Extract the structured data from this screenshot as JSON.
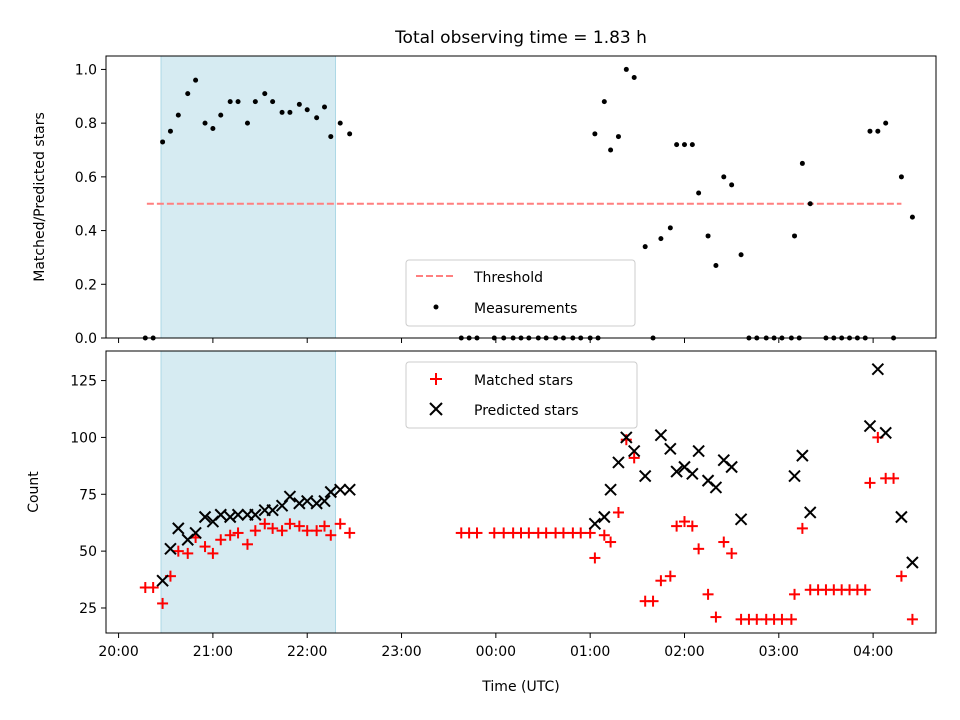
{
  "chart_data": [
    {
      "type": "scatter",
      "title": "Total observing time = 1.83 h",
      "ylabel": "Matched/Predicted stars",
      "xlabel": "",
      "ylim": [
        0,
        1.05
      ],
      "xlim": [
        "19:52",
        "04:40"
      ],
      "yticks": [
        "0.0",
        "0.2",
        "0.4",
        "0.6",
        "0.8",
        "1.0"
      ],
      "shaded_span": [
        "20:27",
        "22:18"
      ],
      "threshold": {
        "name": "Threshold",
        "value": 0.5,
        "x": [
          "20:18",
          "04:18"
        ],
        "color": "#ff7f7f"
      },
      "legend": {
        "placement": "lower-center",
        "entries": [
          "Threshold",
          "Measurements"
        ]
      },
      "series": [
        {
          "name": "Measurements",
          "color": "#000000",
          "points": [
            [
              "20:17",
              0.0
            ],
            [
              "20:22",
              0.0
            ],
            [
              "20:28",
              0.73
            ],
            [
              "20:33",
              0.77
            ],
            [
              "20:38",
              0.83
            ],
            [
              "20:44",
              0.91
            ],
            [
              "20:49",
              0.96
            ],
            [
              "20:55",
              0.8
            ],
            [
              "21:00",
              0.78
            ],
            [
              "21:05",
              0.83
            ],
            [
              "21:11",
              0.88
            ],
            [
              "21:16",
              0.88
            ],
            [
              "21:22",
              0.8
            ],
            [
              "21:27",
              0.88
            ],
            [
              "21:33",
              0.91
            ],
            [
              "21:38",
              0.88
            ],
            [
              "21:44",
              0.84
            ],
            [
              "21:49",
              0.84
            ],
            [
              "21:55",
              0.87
            ],
            [
              "22:00",
              0.85
            ],
            [
              "22:06",
              0.82
            ],
            [
              "22:11",
              0.86
            ],
            [
              "22:15",
              0.75
            ],
            [
              "22:21",
              0.8
            ],
            [
              "22:27",
              0.76
            ],
            [
              "23:38",
              0.0
            ],
            [
              "23:43",
              0.0
            ],
            [
              "23:48",
              0.0
            ],
            [
              "23:59",
              0.0
            ],
            [
              "00:05",
              0.0
            ],
            [
              "00:11",
              0.0
            ],
            [
              "00:16",
              0.0
            ],
            [
              "00:21",
              0.0
            ],
            [
              "00:27",
              0.0
            ],
            [
              "00:32",
              0.0
            ],
            [
              "00:38",
              0.0
            ],
            [
              "00:43",
              0.0
            ],
            [
              "00:49",
              0.0
            ],
            [
              "00:54",
              0.0
            ],
            [
              "01:00",
              0.0
            ],
            [
              "01:05",
              0.0
            ],
            [
              "01:03",
              0.76
            ],
            [
              "01:09",
              0.88
            ],
            [
              "01:13",
              0.7
            ],
            [
              "01:18",
              0.75
            ],
            [
              "01:23",
              1.0
            ],
            [
              "01:28",
              0.97
            ],
            [
              "01:35",
              0.34
            ],
            [
              "01:40",
              0.0
            ],
            [
              "01:45",
              0.37
            ],
            [
              "01:51",
              0.41
            ],
            [
              "01:55",
              0.72
            ],
            [
              "02:00",
              0.72
            ],
            [
              "02:05",
              0.72
            ],
            [
              "02:09",
              0.54
            ],
            [
              "02:15",
              0.38
            ],
            [
              "02:20",
              0.27
            ],
            [
              "02:25",
              0.6
            ],
            [
              "02:30",
              0.57
            ],
            [
              "02:36",
              0.31
            ],
            [
              "02:41",
              0.0
            ],
            [
              "02:46",
              0.0
            ],
            [
              "02:52",
              0.0
            ],
            [
              "02:57",
              0.0
            ],
            [
              "03:02",
              0.0
            ],
            [
              "03:08",
              0.0
            ],
            [
              "03:13",
              0.0
            ],
            [
              "03:10",
              0.38
            ],
            [
              "03:15",
              0.65
            ],
            [
              "03:20",
              0.5
            ],
            [
              "03:30",
              0.0
            ],
            [
              "03:35",
              0.0
            ],
            [
              "03:40",
              0.0
            ],
            [
              "03:45",
              0.0
            ],
            [
              "03:50",
              0.0
            ],
            [
              "03:55",
              0.0
            ],
            [
              "03:58",
              0.77
            ],
            [
              "04:03",
              0.77
            ],
            [
              "04:08",
              0.8
            ],
            [
              "04:13",
              0.0
            ],
            [
              "04:18",
              0.6
            ],
            [
              "04:25",
              0.45
            ]
          ]
        }
      ]
    },
    {
      "type": "scatter",
      "title": "",
      "xlabel": "Time (UTC)",
      "ylabel": "Count",
      "ylim": [
        14,
        138
      ],
      "xlim": [
        "19:52",
        "04:40"
      ],
      "yticks": [
        "25",
        "50",
        "75",
        "100",
        "125"
      ],
      "xticks": [
        "20:00",
        "21:00",
        "22:00",
        "23:00",
        "00:00",
        "01:00",
        "02:00",
        "03:00",
        "04:00"
      ],
      "shaded_span": [
        "20:27",
        "22:18"
      ],
      "legend": {
        "placement": "top-center",
        "entries": [
          "Matched stars",
          "Predicted stars"
        ]
      },
      "series": [
        {
          "name": "Matched stars",
          "marker": "plus",
          "color": "#ff0000",
          "points": [
            [
              "20:17",
              34
            ],
            [
              "20:22",
              34
            ],
            [
              "20:28",
              27
            ],
            [
              "20:33",
              39
            ],
            [
              "20:38",
              50
            ],
            [
              "20:44",
              49
            ],
            [
              "20:49",
              56
            ],
            [
              "20:55",
              52
            ],
            [
              "21:00",
              49
            ],
            [
              "21:05",
              55
            ],
            [
              "21:11",
              57
            ],
            [
              "21:16",
              58
            ],
            [
              "21:22",
              53
            ],
            [
              "21:27",
              59
            ],
            [
              "21:33",
              62
            ],
            [
              "21:38",
              60
            ],
            [
              "21:44",
              59
            ],
            [
              "21:49",
              62
            ],
            [
              "21:55",
              61
            ],
            [
              "22:00",
              59
            ],
            [
              "22:06",
              59
            ],
            [
              "22:11",
              61
            ],
            [
              "22:15",
              57
            ],
            [
              "22:21",
              62
            ],
            [
              "22:27",
              58
            ],
            [
              "23:38",
              58
            ],
            [
              "23:43",
              58
            ],
            [
              "23:48",
              58
            ],
            [
              "23:59",
              58
            ],
            [
              "00:05",
              58
            ],
            [
              "00:11",
              58
            ],
            [
              "00:16",
              58
            ],
            [
              "00:21",
              58
            ],
            [
              "00:27",
              58
            ],
            [
              "00:32",
              58
            ],
            [
              "00:38",
              58
            ],
            [
              "00:43",
              58
            ],
            [
              "00:49",
              58
            ],
            [
              "00:54",
              58
            ],
            [
              "01:00",
              58
            ],
            [
              "01:03",
              47
            ],
            [
              "01:09",
              57
            ],
            [
              "01:13",
              54
            ],
            [
              "01:18",
              67
            ],
            [
              "01:23",
              99
            ],
            [
              "01:28",
              91
            ],
            [
              "01:35",
              28
            ],
            [
              "01:40",
              28
            ],
            [
              "01:45",
              37
            ],
            [
              "01:51",
              39
            ],
            [
              "01:55",
              61
            ],
            [
              "02:00",
              63
            ],
            [
              "02:05",
              61
            ],
            [
              "02:09",
              51
            ],
            [
              "02:15",
              31
            ],
            [
              "02:20",
              21
            ],
            [
              "02:25",
              54
            ],
            [
              "02:30",
              49
            ],
            [
              "02:36",
              20
            ],
            [
              "02:41",
              20
            ],
            [
              "02:46",
              20
            ],
            [
              "02:52",
              20
            ],
            [
              "02:57",
              20
            ],
            [
              "03:02",
              20
            ],
            [
              "03:08",
              20
            ],
            [
              "03:10",
              31
            ],
            [
              "03:15",
              60
            ],
            [
              "03:20",
              33
            ],
            [
              "03:25",
              33
            ],
            [
              "03:30",
              33
            ],
            [
              "03:35",
              33
            ],
            [
              "03:40",
              33
            ],
            [
              "03:45",
              33
            ],
            [
              "03:50",
              33
            ],
            [
              "03:55",
              33
            ],
            [
              "03:58",
              80
            ],
            [
              "04:03",
              100
            ],
            [
              "04:08",
              82
            ],
            [
              "04:13",
              82
            ],
            [
              "04:18",
              39
            ],
            [
              "04:25",
              20
            ]
          ]
        },
        {
          "name": "Predicted stars",
          "marker": "x",
          "color": "#000000",
          "points": [
            [
              "20:28",
              37
            ],
            [
              "20:33",
              51
            ],
            [
              "20:38",
              60
            ],
            [
              "20:44",
              55
            ],
            [
              "20:49",
              58
            ],
            [
              "20:55",
              65
            ],
            [
              "21:00",
              63
            ],
            [
              "21:05",
              66
            ],
            [
              "21:11",
              65
            ],
            [
              "21:16",
              66
            ],
            [
              "21:22",
              66
            ],
            [
              "21:27",
              66
            ],
            [
              "21:33",
              68
            ],
            [
              "21:38",
              68
            ],
            [
              "21:44",
              70
            ],
            [
              "21:49",
              74
            ],
            [
              "21:55",
              71
            ],
            [
              "22:00",
              72
            ],
            [
              "22:06",
              71
            ],
            [
              "22:11",
              72
            ],
            [
              "22:15",
              76
            ],
            [
              "22:21",
              77
            ],
            [
              "22:27",
              77
            ],
            [
              "01:03",
              62
            ],
            [
              "01:09",
              65
            ],
            [
              "01:13",
              77
            ],
            [
              "01:18",
              89
            ],
            [
              "01:23",
              100
            ],
            [
              "01:28",
              94
            ],
            [
              "01:35",
              83
            ],
            [
              "01:45",
              101
            ],
            [
              "01:51",
              95
            ],
            [
              "01:55",
              85
            ],
            [
              "02:00",
              87
            ],
            [
              "02:05",
              84
            ],
            [
              "02:09",
              94
            ],
            [
              "02:15",
              81
            ],
            [
              "02:20",
              78
            ],
            [
              "02:25",
              90
            ],
            [
              "02:30",
              87
            ],
            [
              "02:36",
              64
            ],
            [
              "03:10",
              83
            ],
            [
              "03:15",
              92
            ],
            [
              "03:20",
              67
            ],
            [
              "03:58",
              105
            ],
            [
              "04:03",
              130
            ],
            [
              "04:08",
              102
            ],
            [
              "04:18",
              65
            ],
            [
              "04:25",
              45
            ]
          ]
        }
      ]
    }
  ]
}
